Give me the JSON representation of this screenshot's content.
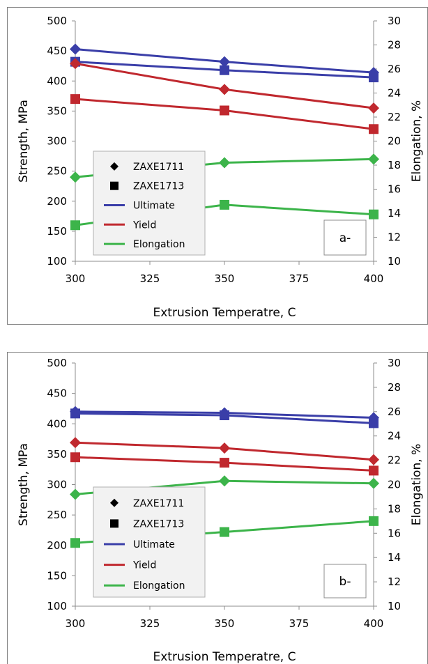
{
  "chart_data": [
    {
      "type": "line",
      "tag": "a-",
      "xlabel": "Extrusion Temperatre, C",
      "ylabel": "Strength, MPa",
      "y2label": "Elongation, %",
      "xlim": [
        300,
        400
      ],
      "xticks": [
        300,
        325,
        350,
        375,
        400
      ],
      "ylim": [
        100,
        500
      ],
      "yticks": [
        100,
        150,
        200,
        250,
        300,
        350,
        400,
        450,
        500
      ],
      "y2lim": [
        10,
        30
      ],
      "y2ticks": [
        10,
        12,
        14,
        16,
        18,
        20,
        22,
        24,
        26,
        28,
        30
      ],
      "legend": [
        "ZAXE1711",
        "ZAXE1713",
        "Ultimate",
        "Yield",
        "Elongation"
      ],
      "legend_position": "lower-left",
      "series": [
        {
          "alloy": "ZAXE1711",
          "property": "Ultimate",
          "axis": "left",
          "marker": "diamond",
          "color": "#3a3ea8",
          "x": [
            300,
            350,
            400
          ],
          "y": [
            453,
            432,
            414
          ]
        },
        {
          "alloy": "ZAXE1713",
          "property": "Ultimate",
          "axis": "left",
          "marker": "square",
          "color": "#3a3ea8",
          "x": [
            300,
            350,
            400
          ],
          "y": [
            432,
            418,
            406
          ]
        },
        {
          "alloy": "ZAXE1711",
          "property": "Yield",
          "axis": "left",
          "marker": "diamond",
          "color": "#c0282e",
          "x": [
            300,
            350,
            400
          ],
          "y": [
            429,
            386,
            355
          ]
        },
        {
          "alloy": "ZAXE1713",
          "property": "Yield",
          "axis": "left",
          "marker": "square",
          "color": "#c0282e",
          "x": [
            300,
            350,
            400
          ],
          "y": [
            370,
            351,
            320
          ]
        },
        {
          "alloy": "ZAXE1711",
          "property": "Elongation",
          "axis": "right",
          "marker": "diamond",
          "color": "#3cb44a",
          "x": [
            300,
            350,
            400
          ],
          "y": [
            17.0,
            18.2,
            18.5
          ]
        },
        {
          "alloy": "ZAXE1713",
          "property": "Elongation",
          "axis": "right",
          "marker": "square",
          "color": "#3cb44a",
          "x": [
            300,
            350,
            400
          ],
          "y": [
            13.0,
            14.7,
            13.9
          ]
        }
      ]
    },
    {
      "type": "line",
      "tag": "b-",
      "xlabel": "Extrusion Temperatre, C",
      "ylabel": "Strength, MPa",
      "y2label": "Elongation, %",
      "xlim": [
        300,
        400
      ],
      "xticks": [
        300,
        325,
        350,
        375,
        400
      ],
      "ylim": [
        100,
        500
      ],
      "yticks": [
        100,
        150,
        200,
        250,
        300,
        350,
        400,
        450,
        500
      ],
      "y2lim": [
        10,
        30
      ],
      "y2ticks": [
        10,
        12,
        14,
        16,
        18,
        20,
        22,
        24,
        26,
        28,
        30
      ],
      "legend": [
        "ZAXE1711",
        "ZAXE1713",
        "Ultimate",
        "Yield",
        "Elongation"
      ],
      "legend_position": "lower-left",
      "series": [
        {
          "alloy": "ZAXE1711",
          "property": "Ultimate",
          "axis": "left",
          "marker": "diamond",
          "color": "#3a3ea8",
          "x": [
            300,
            350,
            400
          ],
          "y": [
            420,
            418,
            410
          ]
        },
        {
          "alloy": "ZAXE1713",
          "property": "Ultimate",
          "axis": "left",
          "marker": "square",
          "color": "#3a3ea8",
          "x": [
            300,
            350,
            400
          ],
          "y": [
            417,
            414,
            401
          ]
        },
        {
          "alloy": "ZAXE1711",
          "property": "Yield",
          "axis": "left",
          "marker": "diamond",
          "color": "#c0282e",
          "x": [
            300,
            350,
            400
          ],
          "y": [
            369,
            360,
            341
          ]
        },
        {
          "alloy": "ZAXE1713",
          "property": "Yield",
          "axis": "left",
          "marker": "square",
          "color": "#c0282e",
          "x": [
            300,
            350,
            400
          ],
          "y": [
            345,
            336,
            323
          ]
        },
        {
          "alloy": "ZAXE1711",
          "property": "Elongation",
          "axis": "right",
          "marker": "diamond",
          "color": "#3cb44a",
          "x": [
            300,
            350,
            400
          ],
          "y": [
            19.2,
            20.3,
            20.1
          ]
        },
        {
          "alloy": "ZAXE1713",
          "property": "Elongation",
          "axis": "right",
          "marker": "square",
          "color": "#3cb44a",
          "x": [
            300,
            350,
            400
          ],
          "y": [
            15.2,
            16.1,
            17.0
          ]
        }
      ]
    }
  ]
}
